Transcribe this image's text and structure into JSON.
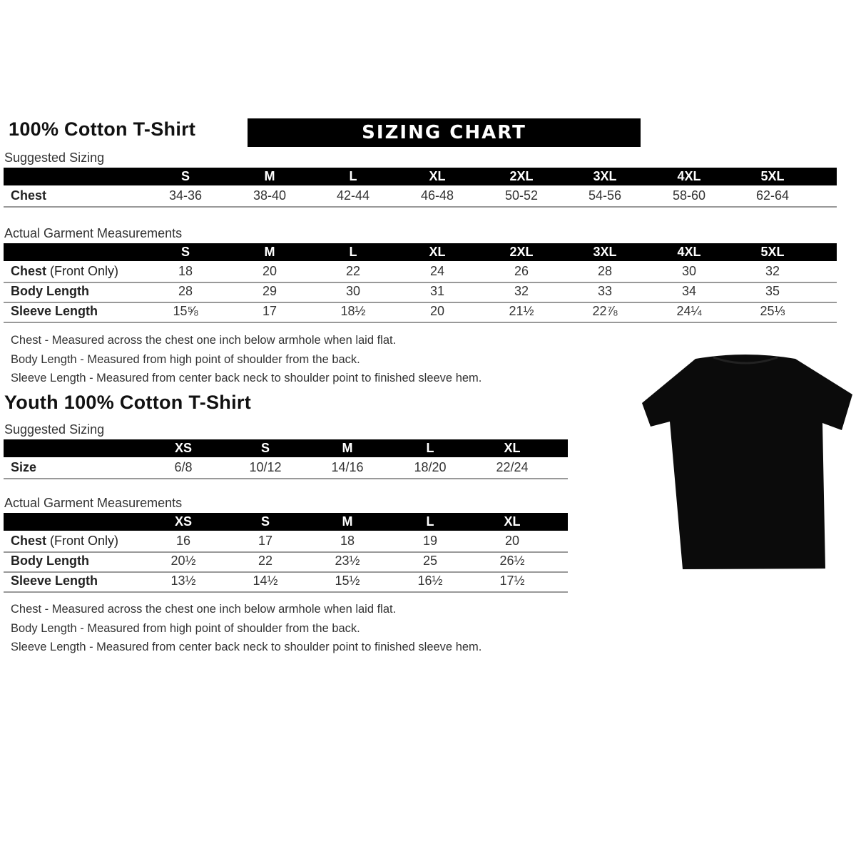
{
  "adult": {
    "title": "100% Cotton T-Shirt",
    "banner": "SIZING CHART",
    "suggested": {
      "label": "Suggested Sizing",
      "sizes": [
        "S",
        "M",
        "L",
        "XL",
        "2XL",
        "3XL",
        "4XL",
        "5XL"
      ],
      "rows": [
        {
          "label": "Chest",
          "values": [
            "34-36",
            "38-40",
            "42-44",
            "46-48",
            "50-52",
            "54-56",
            "58-60",
            "62-64"
          ]
        }
      ]
    },
    "actual": {
      "label": "Actual Garment Measurements",
      "sizes": [
        "S",
        "M",
        "L",
        "XL",
        "2XL",
        "3XL",
        "4XL",
        "5XL"
      ],
      "rows": [
        {
          "label": "Chest",
          "label_note": "(Front Only)",
          "values": [
            "18",
            "20",
            "22",
            "24",
            "26",
            "28",
            "30",
            "32"
          ]
        },
        {
          "label": "Body Length",
          "values": [
            "28",
            "29",
            "30",
            "31",
            "32",
            "33",
            "34",
            "35"
          ]
        },
        {
          "label": "Sleeve Length",
          "values": [
            "15⅝",
            "17",
            "18½",
            "20",
            "21½",
            "22⅞",
            "24¼",
            "25⅓"
          ]
        }
      ]
    },
    "notes": [
      "Chest - Measured across the chest one inch below armhole when laid flat.",
      "Body Length - Measured from high point of shoulder from the back.",
      "Sleeve Length - Measured from center back neck to shoulder point to finished sleeve hem."
    ]
  },
  "youth": {
    "title": "Youth 100% Cotton T-Shirt",
    "suggested": {
      "label": "Suggested Sizing",
      "sizes": [
        "XS",
        "S",
        "M",
        "L",
        "XL"
      ],
      "rows": [
        {
          "label": "Size",
          "values": [
            "6/8",
            "10/12",
            "14/16",
            "18/20",
            "22/24"
          ]
        }
      ]
    },
    "actual": {
      "label": "Actual Garment Measurements",
      "sizes": [
        "XS",
        "S",
        "M",
        "L",
        "XL"
      ],
      "rows": [
        {
          "label": "Chest",
          "label_note": "(Front Only)",
          "values": [
            "16",
            "17",
            "18",
            "19",
            "20"
          ]
        },
        {
          "label": "Body Length",
          "values": [
            "20½",
            "22",
            "23½",
            "25",
            "26½"
          ]
        },
        {
          "label": "Sleeve Length",
          "values": [
            "13½",
            "14½",
            "15½",
            "16½",
            "17½"
          ]
        }
      ]
    },
    "notes": [
      "Chest - Measured across the chest one inch below armhole when laid flat.",
      "Body Length - Measured from high point of shoulder from the back.",
      "Sleeve Length - Measured from center back neck to shoulder point to finished sleeve hem."
    ]
  },
  "image": {
    "name": "black-t-shirt-image",
    "color": "#000000"
  }
}
